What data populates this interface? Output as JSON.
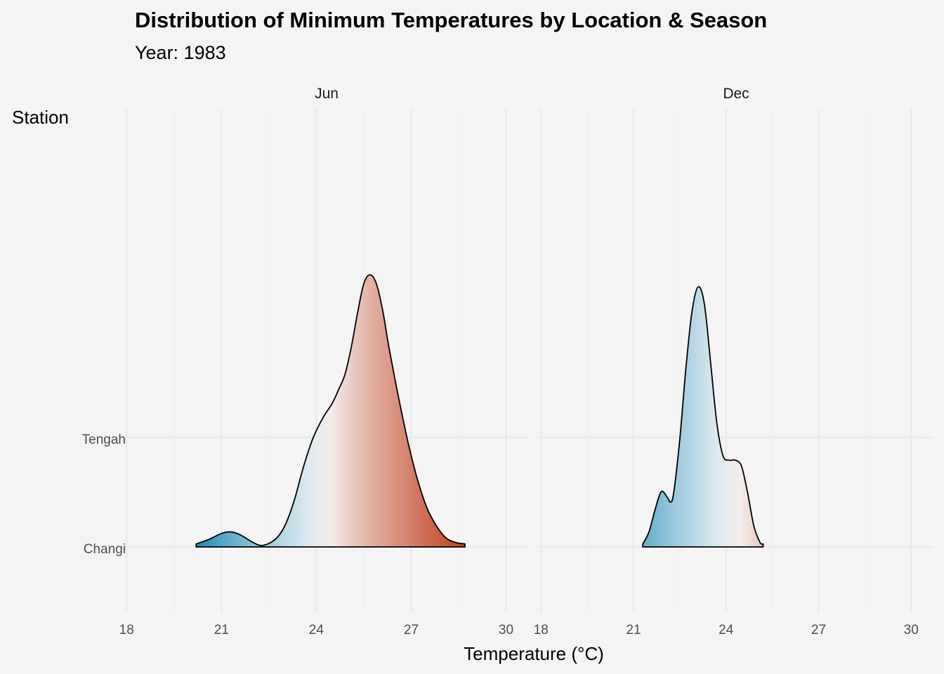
{
  "title": "Distribution of Minimum Temperatures by Location & Season",
  "subtitle": "Year: 1983",
  "chart_data": {
    "type": "ridgeline-density",
    "title": "Distribution of Minimum Temperatures by Location & Season",
    "subtitle": "Year: 1983",
    "xlabel": "Temperature (°C)",
    "ylabel": "Station",
    "xlim": [
      17.95,
      30.7
    ],
    "x_ticks": [
      18,
      21,
      24,
      27,
      30
    ],
    "x_tick_labels": [
      "18",
      "21",
      "24",
      "27",
      "30"
    ],
    "stations": [
      "Changi",
      "Tengah"
    ],
    "grid": true,
    "fill_gradient": {
      "description": "diverging fill by temperature",
      "low_color": "#1b8ab7",
      "mid_color": "#f7f7f7",
      "high_color": "#c0401f",
      "low_value": 20.2,
      "mid_value": 24.3,
      "high_value": 28.7
    },
    "facets": [
      {
        "label": "Jun",
        "station": "Changi",
        "x_range": [
          20.2,
          28.7
        ],
        "curve": [
          [
            20.2,
            0.02
          ],
          [
            20.6,
            0.05
          ],
          [
            21.0,
            0.09
          ],
          [
            21.3,
            0.1
          ],
          [
            21.6,
            0.08
          ],
          [
            22.0,
            0.03
          ],
          [
            22.3,
            0.01
          ],
          [
            22.7,
            0.05
          ],
          [
            23.0,
            0.14
          ],
          [
            23.3,
            0.31
          ],
          [
            23.6,
            0.54
          ],
          [
            23.9,
            0.73
          ],
          [
            24.2,
            0.86
          ],
          [
            24.5,
            0.96
          ],
          [
            24.7,
            1.05
          ],
          [
            24.9,
            1.15
          ],
          [
            25.1,
            1.33
          ],
          [
            25.3,
            1.56
          ],
          [
            25.5,
            1.76
          ],
          [
            25.7,
            1.82
          ],
          [
            25.9,
            1.76
          ],
          [
            26.1,
            1.58
          ],
          [
            26.3,
            1.33
          ],
          [
            26.6,
            1.0
          ],
          [
            26.9,
            0.7
          ],
          [
            27.2,
            0.45
          ],
          [
            27.5,
            0.26
          ],
          [
            27.8,
            0.14
          ],
          [
            28.1,
            0.06
          ],
          [
            28.4,
            0.03
          ],
          [
            28.7,
            0.02
          ]
        ]
      },
      {
        "label": "Dec",
        "station": "Changi",
        "x_range": [
          21.3,
          25.2
        ],
        "curve": [
          [
            21.3,
            0.02
          ],
          [
            21.5,
            0.1
          ],
          [
            21.7,
            0.25
          ],
          [
            21.9,
            0.37
          ],
          [
            22.1,
            0.33
          ],
          [
            22.2,
            0.3
          ],
          [
            22.3,
            0.36
          ],
          [
            22.5,
            0.72
          ],
          [
            22.7,
            1.2
          ],
          [
            22.9,
            1.58
          ],
          [
            23.1,
            1.74
          ],
          [
            23.3,
            1.62
          ],
          [
            23.5,
            1.23
          ],
          [
            23.7,
            0.83
          ],
          [
            23.9,
            0.61
          ],
          [
            24.1,
            0.58
          ],
          [
            24.3,
            0.58
          ],
          [
            24.5,
            0.54
          ],
          [
            24.7,
            0.36
          ],
          [
            24.9,
            0.14
          ],
          [
            25.1,
            0.03
          ],
          [
            25.2,
            0.02
          ]
        ]
      }
    ]
  },
  "legend": null
}
